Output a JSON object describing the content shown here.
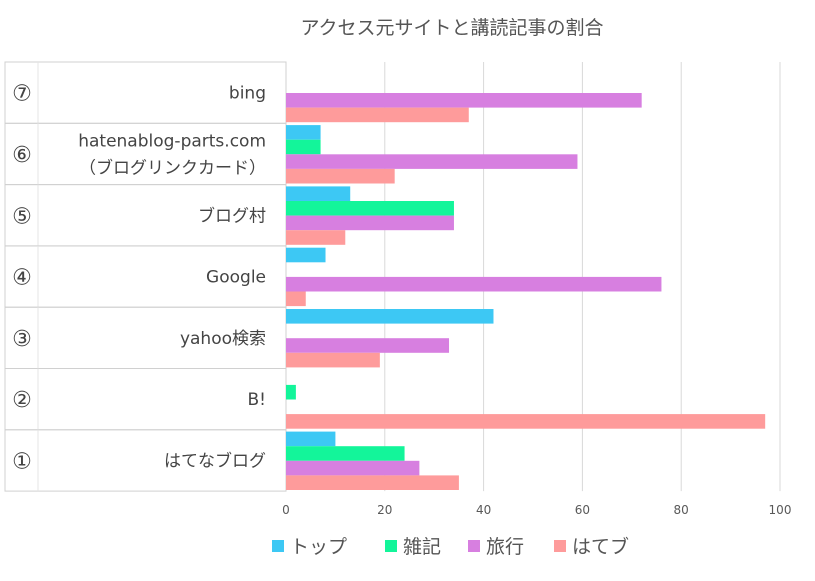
{
  "chart_data": {
    "type": "bar",
    "orientation": "horizontal",
    "title": "アクセス元サイトと講読記事の割合",
    "xlim": [
      0,
      100
    ],
    "xticks": [
      0,
      20,
      40,
      60,
      80,
      100
    ],
    "grid": true,
    "legend_position": "bottom",
    "rows": [
      {
        "num": "⑦",
        "label": [
          "bing"
        ]
      },
      {
        "num": "⑥",
        "label": [
          "hatenablog-parts.com",
          "（ブログリンクカード）"
        ]
      },
      {
        "num": "⑤",
        "label": [
          "ブログ村"
        ]
      },
      {
        "num": "④",
        "label": [
          "Google"
        ]
      },
      {
        "num": "③",
        "label": [
          "yahoo検索"
        ]
      },
      {
        "num": "②",
        "label": [
          "B!"
        ]
      },
      {
        "num": "①",
        "label": [
          "はてなブログ"
        ]
      }
    ],
    "series": [
      {
        "name": "トップ",
        "color": "#3dc8f4",
        "values": [
          0,
          7,
          13,
          8,
          42,
          0,
          10
        ]
      },
      {
        "name": "雑記",
        "color": "#13f59a",
        "values": [
          0,
          7,
          34,
          0,
          0,
          2,
          24
        ]
      },
      {
        "name": "旅行",
        "color": "#d77fe0",
        "values": [
          72,
          59,
          34,
          76,
          33,
          0,
          27
        ]
      },
      {
        "name": "はてブ",
        "color": "#fe9b9b",
        "values": [
          37,
          22,
          12,
          4,
          19,
          97,
          35
        ]
      }
    ]
  }
}
